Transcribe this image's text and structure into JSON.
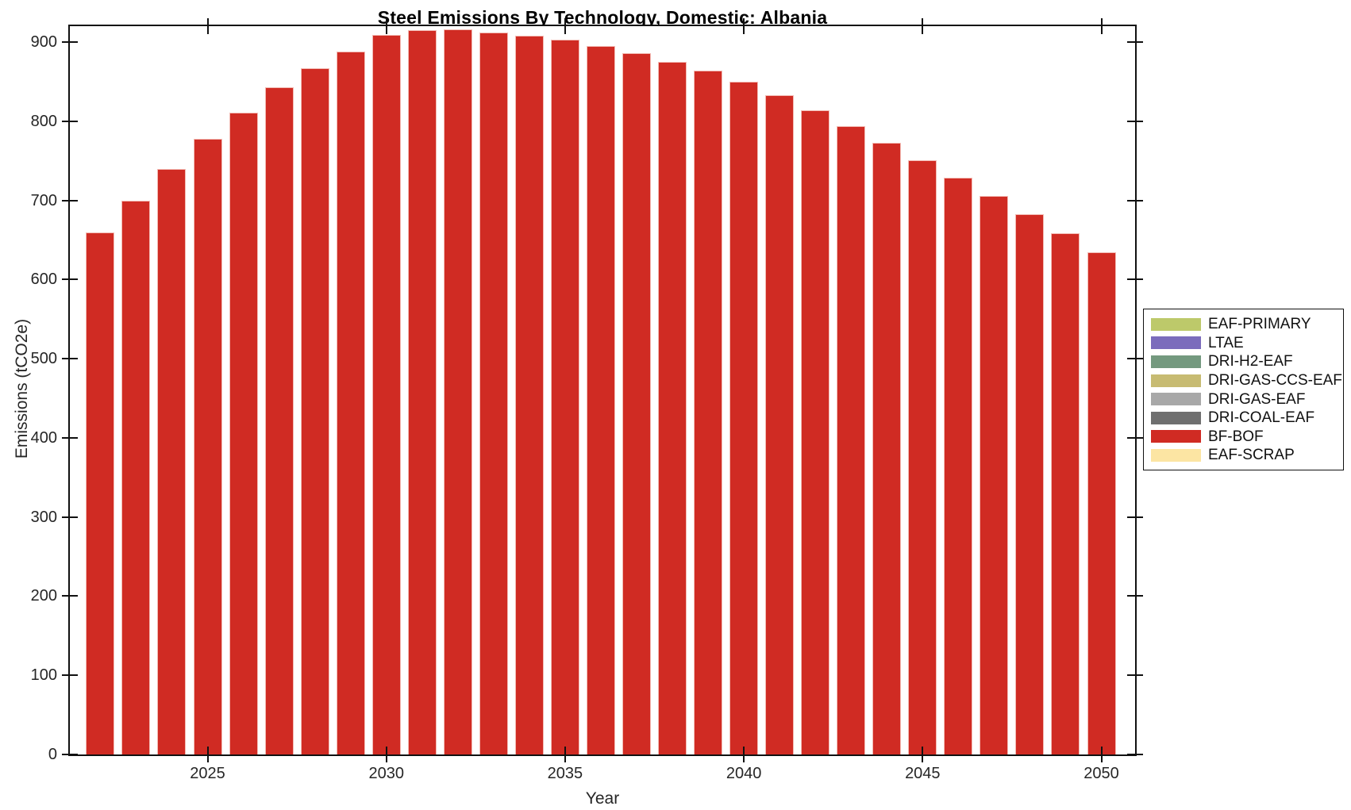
{
  "title": "Steel Emissions By Technology, Domestic: Albania",
  "chart_data": {
    "type": "bar",
    "title": "Steel Emissions By Technology, Domestic: Albania",
    "xlabel": "Year",
    "ylabel": "Emissions (tCO2e)",
    "grid": false,
    "bar_color": "#d02b23",
    "x": [
      2022,
      2023,
      2024,
      2025,
      2026,
      2027,
      2028,
      2029,
      2030,
      2031,
      2032,
      2033,
      2034,
      2035,
      2036,
      2037,
      2038,
      2039,
      2040,
      2041,
      2042,
      2043,
      2044,
      2045,
      2046,
      2047,
      2048,
      2049,
      2050
    ],
    "series": [
      {
        "name": "BF-BOF",
        "color": "#d02b23",
        "values": [
          659,
          700,
          740,
          778,
          811,
          843,
          867,
          888,
          909,
          915,
          916,
          912,
          908,
          903,
          895,
          886,
          875,
          864,
          850,
          833,
          814,
          794,
          773,
          751,
          729,
          706,
          682,
          658,
          634
        ]
      }
    ],
    "x_ticks": [
      2025,
      2030,
      2035,
      2040,
      2045,
      2050
    ],
    "y_ticks": [
      0,
      100,
      200,
      300,
      400,
      500,
      600,
      700,
      800,
      900
    ],
    "ylim": [
      0,
      920
    ],
    "xlim": [
      2021.1,
      2051.1
    ],
    "legend_position": "outside-right",
    "legend": [
      {
        "label": "EAF-PRIMARY",
        "color": "#bdc96a"
      },
      {
        "label": "LTAE",
        "color": "#7b6cbc"
      },
      {
        "label": "DRI-H2-EAF",
        "color": "#74997f"
      },
      {
        "label": "DRI-GAS-CCS-EAF",
        "color": "#c7bb72"
      },
      {
        "label": "DRI-GAS-EAF",
        "color": "#a8a8a8"
      },
      {
        "label": "DRI-COAL-EAF",
        "color": "#6f6f6f"
      },
      {
        "label": "BF-BOF",
        "color": "#d02b23"
      },
      {
        "label": "EAF-SCRAP",
        "color": "#fce5a3"
      }
    ]
  }
}
